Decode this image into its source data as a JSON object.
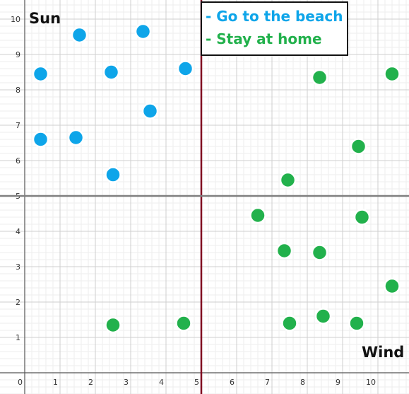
{
  "chart_data": {
    "type": "scatter",
    "title": "",
    "xlabel": "Wind",
    "ylabel": "Sun",
    "xlim": [
      0,
      10.8
    ],
    "ylim": [
      -0.55,
      10.5
    ],
    "x_ticks": [
      0,
      1,
      2,
      3,
      4,
      5,
      6,
      7,
      8,
      9,
      10
    ],
    "y_ticks": [
      1,
      2,
      3,
      4,
      5,
      6,
      7,
      8,
      9,
      10
    ],
    "grid": true,
    "legend_position": "top-center",
    "reference_lines": [
      {
        "orientation": "vertical",
        "x": 5,
        "color": "#800020"
      },
      {
        "orientation": "horizontal",
        "y": 5,
        "color": "#808080"
      }
    ],
    "series": [
      {
        "name": "- Go to the beach",
        "color": "#0EA5E9",
        "points": [
          [
            1.55,
            9.55
          ],
          [
            3.35,
            9.65
          ],
          [
            0.45,
            8.45
          ],
          [
            2.45,
            8.5
          ],
          [
            4.55,
            8.6
          ],
          [
            3.55,
            7.4
          ],
          [
            0.45,
            6.6
          ],
          [
            1.45,
            6.65
          ],
          [
            2.5,
            5.6
          ]
        ]
      },
      {
        "name": "- Stay at home",
        "color": "#22B14C",
        "points": [
          [
            8.35,
            8.35
          ],
          [
            10.4,
            8.45
          ],
          [
            9.45,
            6.4
          ],
          [
            7.45,
            5.45
          ],
          [
            6.6,
            4.45
          ],
          [
            9.55,
            4.4
          ],
          [
            7.35,
            3.45
          ],
          [
            8.35,
            3.4
          ],
          [
            10.4,
            2.45
          ],
          [
            2.5,
            1.35
          ],
          [
            4.5,
            1.4
          ],
          [
            7.5,
            1.4
          ],
          [
            8.45,
            1.6
          ],
          [
            9.4,
            1.4
          ]
        ]
      }
    ]
  }
}
